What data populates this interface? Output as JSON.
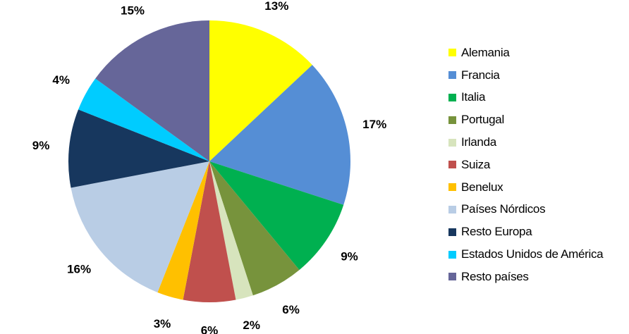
{
  "chart_data": {
    "type": "pie",
    "legend_position": "right",
    "slices": [
      {
        "name": "Alemania",
        "value": 13,
        "label": "13%",
        "color": "#FFFF00"
      },
      {
        "name": "Francia",
        "value": 17,
        "label": "17%",
        "color": "#558ED5"
      },
      {
        "name": "Italia",
        "value": 9,
        "label": "9%",
        "color": "#00B050"
      },
      {
        "name": "Portugal",
        "value": 6,
        "label": "6%",
        "color": "#77933C"
      },
      {
        "name": "Irlanda",
        "value": 2,
        "label": "2%",
        "color": "#D7E4BD"
      },
      {
        "name": "Suiza",
        "value": 6,
        "label": "6%",
        "color": "#C0504D"
      },
      {
        "name": "Benelux",
        "value": 3,
        "label": "3%",
        "color": "#FFC000"
      },
      {
        "name": "Países Nórdicos",
        "value": 16,
        "label": "16%",
        "color": "#B9CDE5"
      },
      {
        "name": "Resto Europa",
        "value": 9,
        "label": "9%",
        "color": "#17375E"
      },
      {
        "name": "Estados Unidos de América",
        "value": 4,
        "label": "4%",
        "color": "#00CCFF"
      },
      {
        "name": "Resto países",
        "value": 15,
        "label": "15%",
        "color": "#666699"
      }
    ]
  }
}
